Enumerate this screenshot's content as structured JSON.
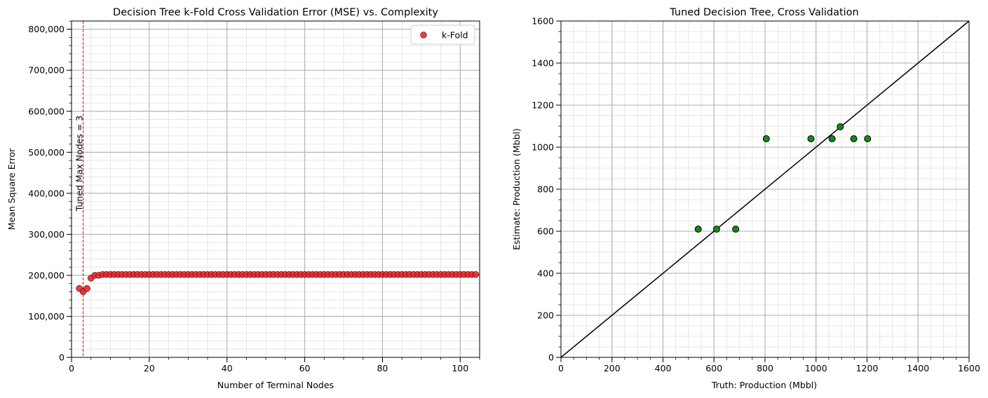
{
  "chart_data": [
    {
      "type": "scatter",
      "title": "Decision Tree k-Fold Cross Validation Error (MSE) vs. Complexity",
      "xlabel": "Number of Terminal Nodes",
      "ylabel": "Mean Square Error",
      "xlim": [
        0,
        105
      ],
      "ylim": [
        0,
        820000
      ],
      "xticks": [
        0,
        20,
        40,
        60,
        80,
        100
      ],
      "yticks": [
        0,
        100000,
        200000,
        300000,
        400000,
        500000,
        600000,
        700000,
        800000
      ],
      "ytick_labels": [
        "0",
        "100,000",
        "200,000",
        "300,000",
        "400,000",
        "500,000",
        "600,000",
        "700,000",
        "800,000"
      ],
      "grid": true,
      "legend": {
        "location": "upper right",
        "entries": [
          "k-Fold"
        ]
      },
      "series": [
        {
          "name": "k-Fold",
          "color": "#e8262a",
          "first_points": [
            [
              2,
              168000
            ],
            [
              3,
              160000
            ],
            [
              4,
              168000
            ],
            [
              5,
              193000
            ],
            [
              6,
              200000
            ],
            [
              7,
              200000
            ]
          ],
          "plateau": {
            "x_start": 8,
            "x_end": 104,
            "y": 202000
          }
        }
      ],
      "annotation": {
        "text": "Tuned Max Nodes = 3",
        "x": 3,
        "color": "#e00000"
      }
    },
    {
      "type": "scatter",
      "title": "Tuned Decision Tree, Cross Validation",
      "xlabel": "Truth: Production (Mbbl)",
      "ylabel": "Estimate: Production (Mbbl)",
      "xlim": [
        0,
        1600
      ],
      "ylim": [
        0,
        1600
      ],
      "xticks": [
        0,
        200,
        400,
        600,
        800,
        1000,
        1200,
        1400,
        1600
      ],
      "yticks": [
        0,
        200,
        400,
        600,
        800,
        1000,
        1200,
        1400,
        1600
      ],
      "grid": true,
      "reference_line": {
        "from": [
          0,
          0
        ],
        "to": [
          1600,
          1600
        ]
      },
      "series": [
        {
          "color": "#138a13",
          "points": [
            [
              538,
              610
            ],
            [
              610,
              610
            ],
            [
              685,
              610
            ],
            [
              805,
              1040
            ],
            [
              980,
              1040
            ],
            [
              1063,
              1040
            ],
            [
              1095,
              1097
            ],
            [
              1148,
              1040
            ],
            [
              1202,
              1040
            ]
          ]
        }
      ]
    }
  ]
}
